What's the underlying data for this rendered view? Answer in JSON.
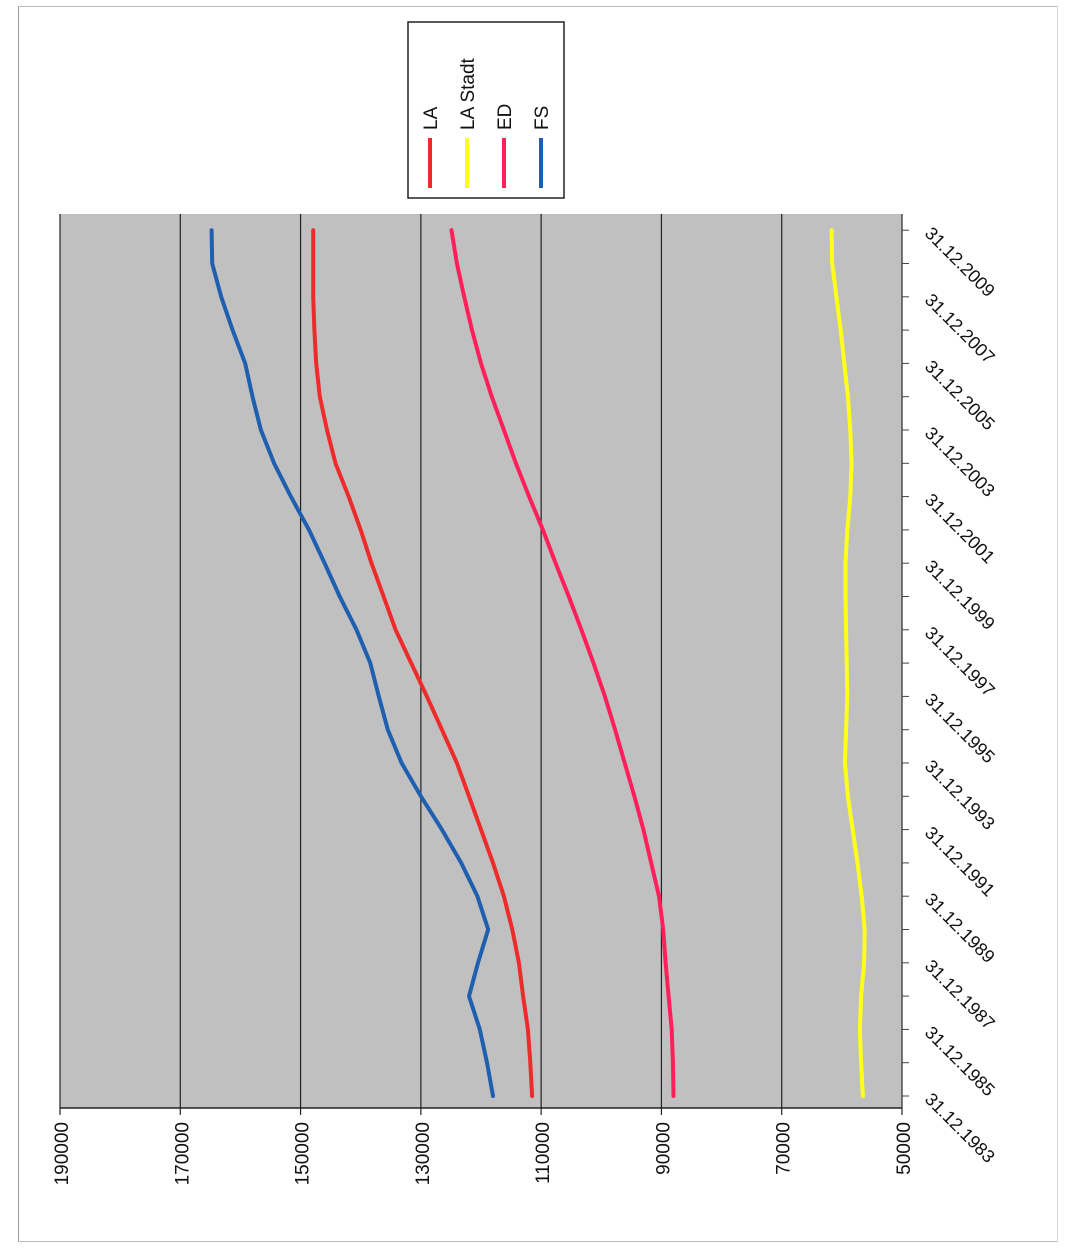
{
  "chart_data": {
    "type": "line",
    "orientation": "rotated-90-clockwise",
    "x": [
      "31.12.1983",
      "31.12.1984",
      "31.12.1985",
      "31.12.1986",
      "31.12.1987",
      "31.12.1988",
      "31.12.1989",
      "31.12.1990",
      "31.12.1991",
      "31.12.1992",
      "31.12.1993",
      "31.12.1994",
      "31.12.1995",
      "31.12.1996",
      "31.12.1997",
      "31.12.1998",
      "31.12.1999",
      "31.12.2000",
      "31.12.2001",
      "31.12.2002",
      "31.12.2003",
      "31.12.2004",
      "31.12.2005",
      "31.12.2006",
      "31.12.2007",
      "31.12.2008",
      "31.12.2009"
    ],
    "x_tick_labels": [
      "31.12.1983",
      "31.12.1985",
      "31.12.1987",
      "31.12.1989",
      "31.12.1991",
      "31.12.1993",
      "31.12.1995",
      "31.12.1997",
      "31.12.1999",
      "31.12.2001",
      "31.12.2003",
      "31.12.2005",
      "31.12.2007",
      "31.12.2009"
    ],
    "y_tick_labels": [
      "50000",
      "70000",
      "90000",
      "110000",
      "130000",
      "150000",
      "170000",
      "190000"
    ],
    "ylim": [
      50000,
      190000
    ],
    "grid": true,
    "legend_position": "top-right",
    "plot_background": "#c0c0c0",
    "series": [
      {
        "name": "LA",
        "color": "#ee2b2b",
        "values": [
          111500,
          111800,
          112200,
          113000,
          113700,
          114800,
          116200,
          118000,
          120000,
          122000,
          124000,
          126500,
          129000,
          131600,
          134200,
          136200,
          138200,
          140000,
          142000,
          144200,
          145600,
          146800,
          147400,
          147700,
          147900,
          147900,
          147900
        ]
      },
      {
        "name": "LA Stadt",
        "color": "#ffff1a",
        "values": [
          56500,
          56800,
          57000,
          56800,
          56300,
          56200,
          56700,
          57400,
          58200,
          59000,
          59500,
          59300,
          59100,
          59200,
          59300,
          59400,
          59400,
          59100,
          58600,
          58400,
          58600,
          59000,
          59600,
          60200,
          60900,
          61600,
          61700
        ]
      },
      {
        "name": "ED",
        "color": "#ff1f5a",
        "values": [
          88000,
          88100,
          88300,
          88800,
          89300,
          89700,
          90400,
          91700,
          93000,
          94500,
          96100,
          97700,
          99400,
          101300,
          103300,
          105400,
          107600,
          109700,
          112000,
          114200,
          116200,
          118200,
          120000,
          121500,
          122800,
          124000,
          124900
        ]
      },
      {
        "name": "FS",
        "color": "#1f5fb0",
        "values": [
          118000,
          119000,
          120200,
          122000,
          120500,
          118800,
          120600,
          123300,
          126500,
          130000,
          133200,
          135500,
          137000,
          138400,
          140700,
          143500,
          146000,
          148600,
          151600,
          154400,
          156600,
          158000,
          159200,
          161300,
          163200,
          164700,
          164800
        ]
      }
    ]
  }
}
